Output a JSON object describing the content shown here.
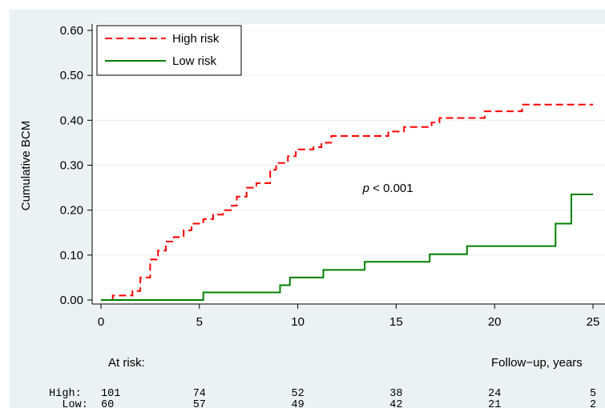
{
  "chart_data": {
    "type": "line",
    "title": "",
    "xlabel": "Follow−up, years",
    "ylabel": "Cumulative BCM",
    "xlim": [
      0,
      25
    ],
    "ylim": [
      0,
      0.6
    ],
    "x_ticks": [
      "0",
      "5",
      "10",
      "15",
      "20",
      "25"
    ],
    "y_ticks": [
      "0.00",
      "0.10",
      "0.20",
      "0.30",
      "0.40",
      "0.50",
      "0.60"
    ],
    "grid": "horizontal",
    "legend_position": "top-left",
    "annotation": {
      "italic": "p",
      "text": " < 0.001",
      "x": 13.3,
      "y": 0.24
    },
    "series": [
      {
        "name": "High risk",
        "color": "#ff0000",
        "style": "dashed",
        "points": [
          [
            0,
            0
          ],
          [
            0.6,
            0.01
          ],
          [
            1.6,
            0.02
          ],
          [
            2.0,
            0.05
          ],
          [
            2.5,
            0.09
          ],
          [
            2.9,
            0.11
          ],
          [
            3.3,
            0.13
          ],
          [
            3.7,
            0.14
          ],
          [
            4.2,
            0.155
          ],
          [
            4.6,
            0.17
          ],
          [
            5.2,
            0.18
          ],
          [
            5.7,
            0.19
          ],
          [
            6.2,
            0.2
          ],
          [
            6.6,
            0.21
          ],
          [
            6.9,
            0.23
          ],
          [
            7.4,
            0.25
          ],
          [
            7.9,
            0.26
          ],
          [
            8.6,
            0.29
          ],
          [
            8.9,
            0.305
          ],
          [
            9.5,
            0.32
          ],
          [
            9.9,
            0.335
          ],
          [
            10.8,
            0.34
          ],
          [
            11.2,
            0.35
          ],
          [
            11.7,
            0.365
          ],
          [
            13.1,
            0.365
          ],
          [
            14.6,
            0.375
          ],
          [
            15.4,
            0.385
          ],
          [
            16.8,
            0.395
          ],
          [
            17.2,
            0.405
          ],
          [
            19.5,
            0.42
          ],
          [
            21.4,
            0.435
          ],
          [
            25,
            0.435
          ]
        ]
      },
      {
        "name": "Low risk",
        "color": "#008000",
        "style": "solid",
        "points": [
          [
            0,
            0
          ],
          [
            5.2,
            0.0
          ],
          [
            5.2,
            0.017
          ],
          [
            9.1,
            0.017
          ],
          [
            9.1,
            0.033
          ],
          [
            9.6,
            0.033
          ],
          [
            9.6,
            0.05
          ],
          [
            11.3,
            0.05
          ],
          [
            11.3,
            0.067
          ],
          [
            13.4,
            0.067
          ],
          [
            13.4,
            0.085
          ],
          [
            16.7,
            0.085
          ],
          [
            16.7,
            0.102
          ],
          [
            18.6,
            0.102
          ],
          [
            18.6,
            0.12
          ],
          [
            23.1,
            0.12
          ],
          [
            23.1,
            0.17
          ],
          [
            23.9,
            0.17
          ],
          [
            23.9,
            0.235
          ],
          [
            25,
            0.235
          ]
        ]
      }
    ],
    "at_risk": {
      "label": "At risk:",
      "rows": [
        {
          "label": "High:",
          "values": [
            "101",
            "74",
            "52",
            "38",
            "24",
            "5"
          ]
        },
        {
          "label": "Low:",
          "values": [
            "60",
            "57",
            "49",
            "42",
            "21",
            "2"
          ]
        }
      ]
    }
  }
}
